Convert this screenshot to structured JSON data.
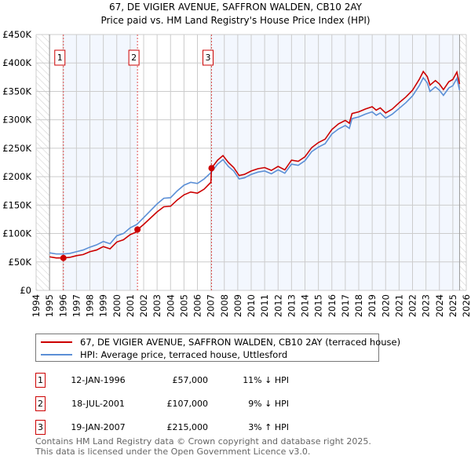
{
  "chart_data": {
    "type": "line",
    "title": "67, DE VIGIER AVENUE, SAFFRON WALDEN, CB10 2AY",
    "subtitle": "Price paid vs. HM Land Registry's House Price Index (HPI)",
    "xlim": [
      1994,
      2026
    ],
    "ylim": [
      0,
      450
    ],
    "x_ticks": [
      "1994",
      "1995",
      "1996",
      "1997",
      "1998",
      "1999",
      "2000",
      "2001",
      "2002",
      "2003",
      "2004",
      "2005",
      "2006",
      "2007",
      "2008",
      "2009",
      "2010",
      "2011",
      "2012",
      "2013",
      "2014",
      "2015",
      "2016",
      "2017",
      "2018",
      "2019",
      "2020",
      "2021",
      "2022",
      "2023",
      "2024",
      "2025",
      "2026"
    ],
    "y_ticks": [
      {
        "v": 0,
        "label": "£0"
      },
      {
        "v": 50,
        "label": "£50K"
      },
      {
        "v": 100,
        "label": "£100K"
      },
      {
        "v": 150,
        "label": "£150K"
      },
      {
        "v": 200,
        "label": "£200K"
      },
      {
        "v": 250,
        "label": "£250K"
      },
      {
        "v": 300,
        "label": "£300K"
      },
      {
        "v": 350,
        "label": "£350K"
      },
      {
        "v": 400,
        "label": "£400K"
      },
      {
        "v": 450,
        "label": "£450K"
      }
    ],
    "data_range": [
      1995,
      2025.5
    ],
    "grid": true,
    "series": [
      {
        "name": "67, DE VIGIER AVENUE, SAFFRON WALDEN, CB10 2AY (terraced house)",
        "color": "#cc0000",
        "points": [
          [
            1995,
            59
          ],
          [
            1995.5,
            57
          ],
          [
            1996,
            57
          ],
          [
            1996.5,
            58
          ],
          [
            1997,
            61
          ],
          [
            1997.5,
            63
          ],
          [
            1998,
            68
          ],
          [
            1998.5,
            71
          ],
          [
            1999,
            77
          ],
          [
            1999.5,
            73
          ],
          [
            2000,
            85
          ],
          [
            2000.5,
            89
          ],
          [
            2001,
            98
          ],
          [
            2001.5,
            103
          ],
          [
            2001.55,
            107
          ],
          [
            2002,
            116
          ],
          [
            2002.5,
            127
          ],
          [
            2003,
            138
          ],
          [
            2003.5,
            147
          ],
          [
            2004,
            148
          ],
          [
            2004.5,
            159
          ],
          [
            2005,
            168
          ],
          [
            2005.5,
            173
          ],
          [
            2006,
            171
          ],
          [
            2006.5,
            178
          ],
          [
            2007,
            190
          ],
          [
            2007.05,
            215
          ],
          [
            2007.5,
            229
          ],
          [
            2007.9,
            237
          ],
          [
            2008.3,
            225
          ],
          [
            2008.7,
            216
          ],
          [
            2009.1,
            202
          ],
          [
            2009.5,
            204
          ],
          [
            2010,
            210
          ],
          [
            2010.5,
            214
          ],
          [
            2011,
            216
          ],
          [
            2011.5,
            211
          ],
          [
            2012,
            218
          ],
          [
            2012.5,
            212
          ],
          [
            2013,
            229
          ],
          [
            2013.5,
            227
          ],
          [
            2014,
            235
          ],
          [
            2014.5,
            251
          ],
          [
            2015,
            260
          ],
          [
            2015.5,
            266
          ],
          [
            2016,
            283
          ],
          [
            2016.5,
            293
          ],
          [
            2017,
            299
          ],
          [
            2017.3,
            294
          ],
          [
            2017.5,
            311
          ],
          [
            2018,
            314
          ],
          [
            2018.5,
            319
          ],
          [
            2019,
            323
          ],
          [
            2019.3,
            317
          ],
          [
            2019.6,
            321
          ],
          [
            2020,
            312
          ],
          [
            2020.5,
            319
          ],
          [
            2021,
            330
          ],
          [
            2021.5,
            340
          ],
          [
            2022,
            352
          ],
          [
            2022.5,
            371
          ],
          [
            2022.8,
            385
          ],
          [
            2023.1,
            376
          ],
          [
            2023.3,
            361
          ],
          [
            2023.7,
            369
          ],
          [
            2024,
            363
          ],
          [
            2024.3,
            353
          ],
          [
            2024.7,
            367
          ],
          [
            2025,
            371
          ],
          [
            2025.3,
            384
          ],
          [
            2025.5,
            363
          ]
        ]
      },
      {
        "name": "HPI: Average price, terraced house, Uttlesford",
        "color": "#5b8fd6",
        "points": [
          [
            1995,
            66
          ],
          [
            1995.5,
            64
          ],
          [
            1996,
            64
          ],
          [
            1996.5,
            65
          ],
          [
            1997,
            68
          ],
          [
            1997.5,
            71
          ],
          [
            1998,
            76
          ],
          [
            1998.5,
            80
          ],
          [
            1999,
            86
          ],
          [
            1999.5,
            82
          ],
          [
            2000,
            96
          ],
          [
            2000.5,
            100
          ],
          [
            2001,
            110
          ],
          [
            2001.5,
            116
          ],
          [
            2002,
            128
          ],
          [
            2002.5,
            140
          ],
          [
            2003,
            152
          ],
          [
            2003.5,
            162
          ],
          [
            2004,
            163
          ],
          [
            2004.5,
            175
          ],
          [
            2005,
            185
          ],
          [
            2005.5,
            190
          ],
          [
            2006,
            188
          ],
          [
            2006.5,
            196
          ],
          [
            2007,
            207
          ],
          [
            2007.5,
            222
          ],
          [
            2007.9,
            230
          ],
          [
            2008.3,
            218
          ],
          [
            2008.7,
            210
          ],
          [
            2009.1,
            196
          ],
          [
            2009.5,
            198
          ],
          [
            2010,
            204
          ],
          [
            2010.5,
            208
          ],
          [
            2011,
            210
          ],
          [
            2011.5,
            205
          ],
          [
            2012,
            212
          ],
          [
            2012.5,
            206
          ],
          [
            2013,
            222
          ],
          [
            2013.5,
            220
          ],
          [
            2014,
            228
          ],
          [
            2014.5,
            244
          ],
          [
            2015,
            252
          ],
          [
            2015.5,
            258
          ],
          [
            2016,
            275
          ],
          [
            2016.5,
            284
          ],
          [
            2017,
            290
          ],
          [
            2017.3,
            285
          ],
          [
            2017.5,
            302
          ],
          [
            2018,
            305
          ],
          [
            2018.5,
            310
          ],
          [
            2019,
            314
          ],
          [
            2019.3,
            308
          ],
          [
            2019.6,
            312
          ],
          [
            2020,
            303
          ],
          [
            2020.5,
            310
          ],
          [
            2021,
            320
          ],
          [
            2021.5,
            330
          ],
          [
            2022,
            342
          ],
          [
            2022.5,
            360
          ],
          [
            2022.8,
            374
          ],
          [
            2023.1,
            365
          ],
          [
            2023.3,
            350
          ],
          [
            2023.7,
            358
          ],
          [
            2024,
            352
          ],
          [
            2024.3,
            343
          ],
          [
            2024.7,
            356
          ],
          [
            2025,
            360
          ],
          [
            2025.3,
            373
          ],
          [
            2025.5,
            352
          ]
        ]
      }
    ],
    "sales": [
      {
        "label": "1",
        "x": 1996.03,
        "price": 57,
        "date": "12-JAN-1996",
        "price_text": "£57,000",
        "hpi_text": "11% ↓ HPI"
      },
      {
        "label": "2",
        "x": 2001.54,
        "price": 107,
        "date": "18-JUL-2001",
        "price_text": "£107,000",
        "hpi_text": "9% ↓ HPI"
      },
      {
        "label": "3",
        "x": 2007.05,
        "price": 215,
        "date": "19-JAN-2007",
        "price_text": "£215,000",
        "hpi_text": "3% ↑ HPI"
      }
    ]
  },
  "footer": {
    "line1": "Contains HM Land Registry data © Crown copyright and database right 2025.",
    "line2": "This data is licensed under the Open Government Licence v3.0."
  }
}
